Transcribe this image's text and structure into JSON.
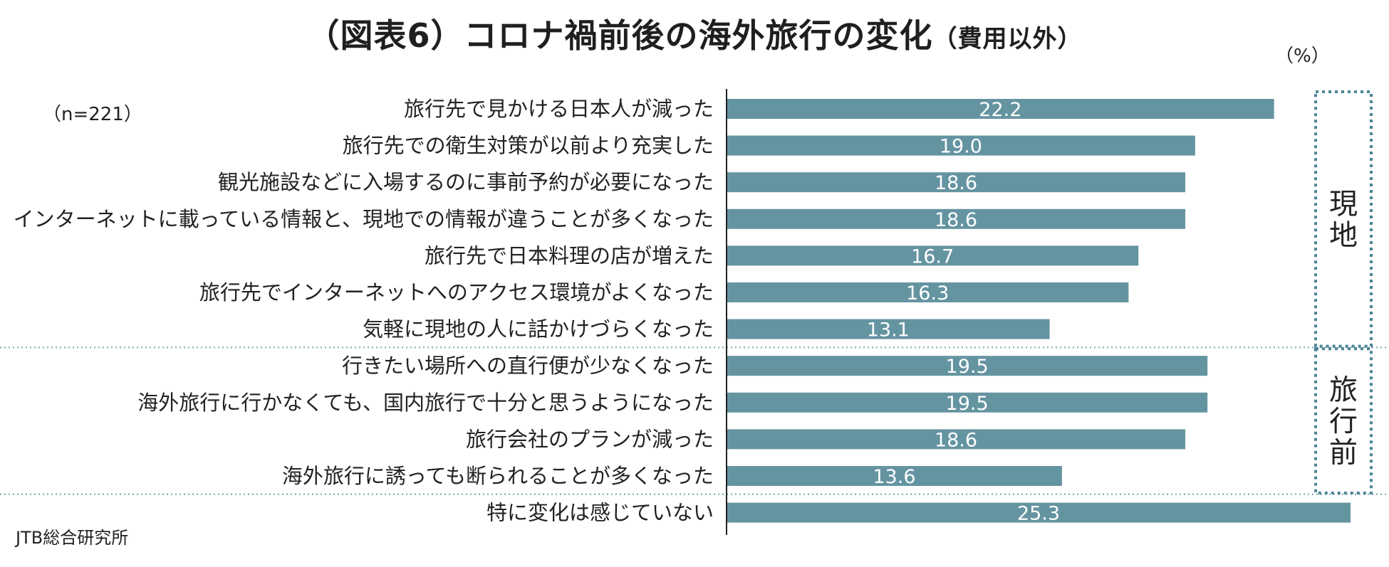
{
  "title": "（図表6）コロナ禍前後の海外旅行の変化",
  "title_suffix": "（費用以外）",
  "unit": "（%）",
  "sample_size": "（n=221）",
  "source": "JTB総合研究所",
  "colors": {
    "bar": "#6594a1",
    "group_border": "#4c8496",
    "separator": "#7aa6b2"
  },
  "chart_data": {
    "type": "bar",
    "orientation": "horizontal",
    "categories": [
      "旅行先で見かける日本人が減った",
      "旅行先での衛生対策が以前より充実した",
      "観光施設などに入場するのに事前予約が必要になった",
      "インターネットに載っている情報と、現地での情報が違うことが多くなった",
      "旅行先で日本料理の店が増えた",
      "旅行先でインターネットへのアクセス環境がよくなった",
      "気軽に現地の人に話かけづらくなった",
      "行きたい場所への直行便が少なくなった",
      "海外旅行に行かなくても、国内旅行で十分と思うようになった",
      "旅行会社のプランが減った",
      "海外旅行に誘っても断られることが多くなった",
      "特に変化は感じていない"
    ],
    "values": [
      22.2,
      19.0,
      18.6,
      18.6,
      16.7,
      16.3,
      13.1,
      19.5,
      19.5,
      18.6,
      13.6,
      25.3
    ],
    "value_labels": [
      "22.2",
      "19.0",
      "18.6",
      "18.6",
      "16.7",
      "16.3",
      "13.1",
      "19.5",
      "19.5",
      "18.6",
      "13.6",
      "25.3"
    ],
    "groups": [
      {
        "name": "現地",
        "chars": [
          "現",
          "地"
        ],
        "start": 0,
        "end": 6
      },
      {
        "name": "旅行前",
        "chars": [
          "旅",
          "行",
          "前"
        ],
        "start": 7,
        "end": 10
      }
    ],
    "xlim": [
      0,
      25.3
    ],
    "grid": false,
    "legend": "none"
  }
}
